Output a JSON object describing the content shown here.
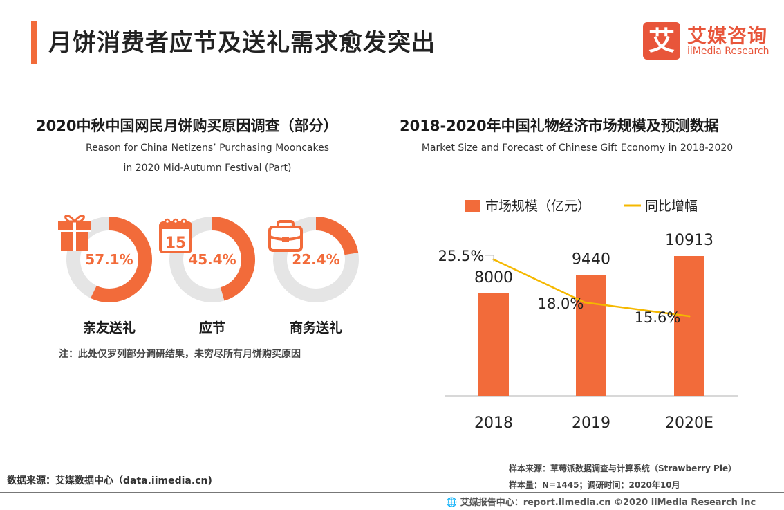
{
  "header": {
    "title": "月饼消费者应节及送礼需求愈发突出"
  },
  "logo": {
    "mark": "艾",
    "cn": "艾媒咨询",
    "en": "iiMedia Research",
    "color": "#e8553a"
  },
  "left": {
    "title": "2020中秋中国网民月饼购买原因调查（部分）",
    "subtitle_line1": "Reason for China Netizens’   Purchasing Mooncakes",
    "subtitle_line2": "in 2020 Mid-Autumn Festival (Part)",
    "items": [
      {
        "label": "亲友送礼",
        "value": 57.1,
        "display": "57.1%",
        "icon": "gift-icon"
      },
      {
        "label": "应节",
        "value": 45.4,
        "display": "45.4%",
        "icon": "calendar-icon",
        "icon_text": "15"
      },
      {
        "label": "商务送礼",
        "value": 22.4,
        "display": "22.4%",
        "icon": "briefcase-icon"
      }
    ],
    "note": "注：此处仅罗列部分调研结果，未穷尽所有月饼购买原因"
  },
  "right": {
    "title": "2018-2020年中国礼物经济市场规模及预测数据",
    "subtitle": "Market Size and Forecast of Chinese Gift Economy in 2018-2020"
  },
  "chart_data": {
    "type": "bar",
    "categories": [
      "2018",
      "2019",
      "2020E"
    ],
    "series": [
      {
        "name": "市场规模（亿元）",
        "type": "bar",
        "values": [
          8000,
          9440,
          10913
        ],
        "labels": [
          "8000",
          "9440",
          "10913"
        ],
        "color": "#f26b3a"
      },
      {
        "name": "同比增幅",
        "type": "line",
        "values": [
          25.5,
          18.0,
          15.6
        ],
        "labels": [
          "25.5%",
          "18.0%",
          "15.6%"
        ],
        "color": "#f5b800"
      }
    ],
    "ylim": [
      0,
      11000
    ]
  },
  "footer": {
    "source_left": "数据来源：艾媒数据中心（data.iimedia.cn)",
    "sample_source": "样本来源：草莓派数据调查与计算系统（Strawberry Pie）",
    "sample_size": "样本量：N=1445；调研时间：2020年10月",
    "copyright": "艾媒报告中心：report.iimedia.cn   ©2020  iiMedia Research  Inc"
  },
  "colors": {
    "accent": "#f26b3a",
    "track": "#e5e5e5",
    "line": "#f5b800"
  }
}
